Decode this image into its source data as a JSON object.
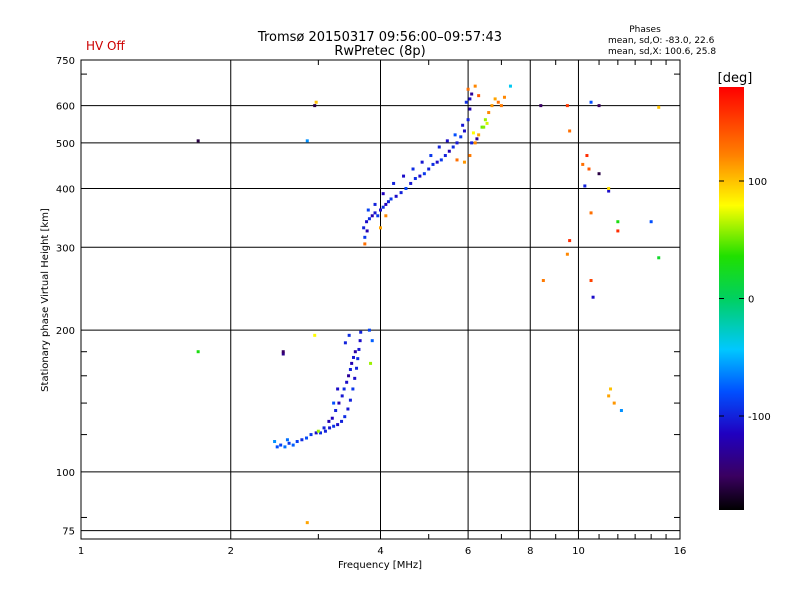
{
  "header": {
    "title_line1": "Tromsø 20150317 09:56:00–09:57:43",
    "title_line2": "RwPretec (8p)",
    "status": "HV Off",
    "phases_title": "Phases",
    "phases_line1": "mean, sd,O: -83.0, 22.6",
    "phases_line2": "mean, sd,X: 100.6, 25.8"
  },
  "colorbar": {
    "unit": "[deg]",
    "ticks": [
      "100",
      "0",
      "-100"
    ],
    "tick_values": [
      100,
      0,
      -100
    ],
    "range": [
      -180,
      180
    ]
  },
  "colors": {
    "status_red": "#cc0000"
  },
  "chart_data": {
    "type": "scatter",
    "title": "Tromsø 20150317 09:56:00–09:57:43",
    "subtitle": "RwPretec (8p)",
    "xlabel": "Frequency [MHz]",
    "ylabel": "Stationary phase Virtual Height [km]",
    "xscale": "log",
    "yscale": "log",
    "xlim": [
      1,
      16
    ],
    "ylim": [
      72,
      750
    ],
    "xticks": [
      1,
      2,
      4,
      6,
      8,
      10,
      16
    ],
    "yticks": [
      75,
      100,
      200,
      300,
      400,
      500,
      600,
      750
    ],
    "grid": true,
    "color_variable": "phase [deg]",
    "points": [
      [
        2.48,
        113,
        -80
      ],
      [
        2.52,
        114,
        -85
      ],
      [
        2.57,
        113,
        -70
      ],
      [
        2.62,
        115,
        -90
      ],
      [
        2.67,
        114,
        -75
      ],
      [
        2.72,
        116,
        -88
      ],
      [
        2.78,
        117,
        -95
      ],
      [
        2.84,
        118,
        -82
      ],
      [
        2.9,
        120,
        -90
      ],
      [
        2.97,
        121,
        -110
      ],
      [
        3.03,
        121,
        -95
      ],
      [
        3.1,
        122,
        -100
      ],
      [
        3.16,
        124,
        -105
      ],
      [
        3.22,
        125,
        -92
      ],
      [
        3.28,
        126,
        -110
      ],
      [
        3.34,
        128,
        -100
      ],
      [
        3.39,
        131,
        -95
      ],
      [
        3.44,
        136,
        -105
      ],
      [
        3.48,
        142,
        -100
      ],
      [
        3.52,
        150,
        -90
      ],
      [
        3.55,
        158,
        -110
      ],
      [
        3.58,
        166,
        -100
      ],
      [
        3.6,
        174,
        -95
      ],
      [
        3.62,
        182,
        -105
      ],
      [
        3.64,
        190,
        -110
      ],
      [
        3.65,
        198,
        -100
      ],
      [
        3.2,
        130,
        -115
      ],
      [
        3.25,
        135,
        -100
      ],
      [
        3.3,
        140,
        -120
      ],
      [
        3.35,
        145,
        -105
      ],
      [
        3.38,
        150,
        -95
      ],
      [
        3.42,
        155,
        -110
      ],
      [
        3.45,
        160,
        -130
      ],
      [
        3.48,
        165,
        -100
      ],
      [
        3.5,
        170,
        -120
      ],
      [
        3.53,
        175,
        -105
      ],
      [
        3.56,
        180,
        -125
      ],
      [
        3.4,
        188,
        -100
      ],
      [
        3.46,
        195,
        -95
      ],
      [
        3.28,
        150,
        -110
      ],
      [
        3.22,
        140,
        -80
      ],
      [
        3.15,
        128,
        -120
      ],
      [
        3.08,
        124,
        -100
      ],
      [
        2.55,
        178,
        -135
      ],
      [
        2.95,
        195,
        80
      ],
      [
        3.0,
        122,
        60
      ],
      [
        2.6,
        117,
        -70
      ],
      [
        2.45,
        116,
        -60
      ],
      [
        1.72,
        180,
        30
      ],
      [
        3.85,
        190,
        -75
      ],
      [
        3.82,
        170,
        60
      ],
      [
        3.8,
        200,
        -85
      ],
      [
        3.7,
        330,
        -100
      ],
      [
        3.75,
        340,
        -110
      ],
      [
        3.8,
        345,
        -95
      ],
      [
        3.85,
        350,
        -120
      ],
      [
        3.9,
        355,
        -105
      ],
      [
        3.95,
        350,
        -90
      ],
      [
        4.0,
        360,
        -110
      ],
      [
        4.05,
        365,
        -95
      ],
      [
        4.1,
        370,
        -115
      ],
      [
        4.15,
        375,
        -100
      ],
      [
        4.2,
        380,
        -90
      ],
      [
        4.3,
        385,
        -110
      ],
      [
        4.4,
        392,
        -100
      ],
      [
        4.5,
        400,
        -85
      ],
      [
        4.6,
        410,
        -105
      ],
      [
        4.7,
        420,
        -95
      ],
      [
        4.8,
        425,
        -110
      ],
      [
        4.9,
        430,
        -90
      ],
      [
        5.0,
        440,
        -100
      ],
      [
        5.1,
        450,
        -95
      ],
      [
        5.2,
        455,
        -110
      ],
      [
        5.3,
        460,
        -90
      ],
      [
        5.4,
        470,
        -100
      ],
      [
        5.5,
        480,
        -120
      ],
      [
        5.6,
        490,
        -95
      ],
      [
        5.7,
        500,
        -105
      ],
      [
        5.8,
        515,
        -90
      ],
      [
        5.9,
        530,
        -110
      ],
      [
        6.0,
        560,
        -100
      ],
      [
        6.05,
        590,
        -120
      ],
      [
        6.05,
        620,
        -110
      ],
      [
        6.1,
        635,
        -130
      ],
      [
        5.95,
        610,
        -95
      ],
      [
        5.85,
        545,
        -105
      ],
      [
        5.65,
        520,
        -80
      ],
      [
        5.45,
        505,
        -110
      ],
      [
        5.25,
        490,
        -100
      ],
      [
        5.05,
        470,
        -90
      ],
      [
        4.85,
        455,
        -105
      ],
      [
        4.65,
        440,
        -95
      ],
      [
        4.45,
        425,
        -110
      ],
      [
        4.25,
        410,
        -100
      ],
      [
        4.05,
        390,
        -115
      ],
      [
        3.9,
        370,
        -100
      ],
      [
        3.78,
        360,
        -85
      ],
      [
        3.72,
        315,
        -90
      ],
      [
        3.76,
        325,
        -120
      ],
      [
        4.0,
        330,
        110
      ],
      [
        3.72,
        305,
        130
      ],
      [
        4.1,
        350,
        120
      ],
      [
        5.7,
        460,
        130
      ],
      [
        5.9,
        455,
        115
      ],
      [
        6.05,
        470,
        125
      ],
      [
        6.2,
        500,
        120
      ],
      [
        6.3,
        520,
        110
      ],
      [
        6.4,
        540,
        50
      ],
      [
        6.5,
        560,
        60
      ],
      [
        6.6,
        580,
        120
      ],
      [
        6.7,
        600,
        115
      ],
      [
        6.8,
        620,
        110
      ],
      [
        6.9,
        610,
        130
      ],
      [
        7.0,
        600,
        125
      ],
      [
        7.1,
        625,
        120
      ],
      [
        7.3,
        660,
        -40
      ],
      [
        6.2,
        660,
        120
      ],
      [
        6.0,
        650,
        130
      ],
      [
        6.3,
        630,
        140
      ],
      [
        6.45,
        540,
        55
      ],
      [
        6.55,
        550,
        70
      ],
      [
        6.15,
        525,
        80
      ],
      [
        6.1,
        500,
        -100
      ],
      [
        6.25,
        510,
        -130
      ],
      [
        1.72,
        505,
        -160
      ],
      [
        2.55,
        180,
        -150
      ],
      [
        2.85,
        505,
        -60
      ],
      [
        2.95,
        600,
        -160
      ],
      [
        2.97,
        610,
        100
      ],
      [
        2.85,
        78,
        110
      ],
      [
        8.4,
        600,
        -150
      ],
      [
        8.5,
        255,
        125
      ],
      [
        9.5,
        600,
        155
      ],
      [
        9.6,
        530,
        130
      ],
      [
        9.6,
        310,
        160
      ],
      [
        9.5,
        290,
        120
      ],
      [
        10.2,
        450,
        130
      ],
      [
        10.4,
        470,
        160
      ],
      [
        10.5,
        440,
        140
      ],
      [
        10.3,
        405,
        -100
      ],
      [
        10.6,
        610,
        -80
      ],
      [
        11.0,
        600,
        -150
      ],
      [
        11.0,
        430,
        -160
      ],
      [
        11.5,
        395,
        -110
      ],
      [
        11.5,
        400,
        90
      ],
      [
        10.6,
        355,
        130
      ],
      [
        10.6,
        255,
        150
      ],
      [
        10.7,
        235,
        -110
      ],
      [
        12.0,
        325,
        160
      ],
      [
        12.0,
        340,
        30
      ],
      [
        11.5,
        145,
        110
      ],
      [
        11.6,
        150,
        100
      ],
      [
        11.8,
        140,
        115
      ],
      [
        12.2,
        135,
        -60
      ],
      [
        14.0,
        340,
        -80
      ],
      [
        14.5,
        285,
        20
      ],
      [
        14.5,
        595,
        100
      ]
    ]
  }
}
